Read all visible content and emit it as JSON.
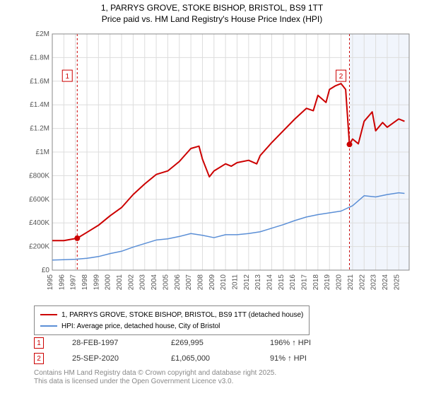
{
  "title": {
    "line1": "1, PARRYS GROVE, STOKE BISHOP, BRISTOL, BS9 1TT",
    "line2": "Price paid vs. HM Land Registry's House Price Index (HPI)",
    "fontsize": 12
  },
  "chart": {
    "type": "line",
    "background_color": "#ffffff",
    "grid_color": "#dddddd",
    "border_color": "#888888",
    "highlight_band": {
      "x_start": 2020.73,
      "x_end": 2025.9,
      "fill": "#f1f5fc"
    },
    "y_axis": {
      "min": 0,
      "max": 2000000,
      "ticks": [
        0,
        200000,
        400000,
        600000,
        800000,
        1000000,
        1200000,
        1400000,
        1600000,
        1800000,
        2000000
      ],
      "tick_labels": [
        "£0",
        "£200K",
        "£400K",
        "£600K",
        "£800K",
        "£1M",
        "£1.2M",
        "£1.4M",
        "£1.6M",
        "£1.8M",
        "£2M"
      ],
      "label_fontsize": 10,
      "label_color": "#555555"
    },
    "x_axis": {
      "min": 1995,
      "max": 2025.9,
      "ticks": [
        1995,
        1996,
        1997,
        1998,
        1999,
        2000,
        2001,
        2002,
        2003,
        2004,
        2005,
        2006,
        2007,
        2008,
        2009,
        2010,
        2011,
        2012,
        2013,
        2014,
        2015,
        2016,
        2017,
        2018,
        2019,
        2020,
        2021,
        2022,
        2023,
        2024,
        2025
      ],
      "label_fontsize": 10,
      "label_color": "#555555",
      "rotate": -90
    },
    "series": [
      {
        "name": "price_paid",
        "label": "1, PARRYS GROVE, STOKE BISHOP, BRISTOL, BS9 1TT (detached house)",
        "color": "#cc0000",
        "width": 2,
        "data": [
          [
            1995,
            250000
          ],
          [
            1996,
            250000
          ],
          [
            1997.16,
            269995
          ],
          [
            1998,
            320000
          ],
          [
            1999,
            380000
          ],
          [
            2000,
            460000
          ],
          [
            2001,
            530000
          ],
          [
            2002,
            640000
          ],
          [
            2003,
            730000
          ],
          [
            2004,
            810000
          ],
          [
            2005,
            840000
          ],
          [
            2006,
            920000
          ],
          [
            2007,
            1030000
          ],
          [
            2007.7,
            1050000
          ],
          [
            2008,
            940000
          ],
          [
            2008.6,
            790000
          ],
          [
            2009,
            840000
          ],
          [
            2010,
            900000
          ],
          [
            2010.5,
            880000
          ],
          [
            2011,
            910000
          ],
          [
            2012,
            930000
          ],
          [
            2012.7,
            900000
          ],
          [
            2013,
            970000
          ],
          [
            2014,
            1080000
          ],
          [
            2015,
            1180000
          ],
          [
            2016,
            1280000
          ],
          [
            2017,
            1370000
          ],
          [
            2017.6,
            1350000
          ],
          [
            2018,
            1480000
          ],
          [
            2018.7,
            1420000
          ],
          [
            2019,
            1530000
          ],
          [
            2019.5,
            1560000
          ],
          [
            2020,
            1580000
          ],
          [
            2020.4,
            1530000
          ],
          [
            2020.73,
            1065000
          ],
          [
            2021,
            1110000
          ],
          [
            2021.5,
            1070000
          ],
          [
            2022,
            1260000
          ],
          [
            2022.7,
            1340000
          ],
          [
            2023,
            1180000
          ],
          [
            2023.6,
            1250000
          ],
          [
            2024,
            1210000
          ],
          [
            2025,
            1280000
          ],
          [
            2025.5,
            1260000
          ]
        ]
      },
      {
        "name": "hpi",
        "label": "HPI: Average price, detached house, City of Bristol",
        "color": "#5b8fd6",
        "width": 1.5,
        "data": [
          [
            1995,
            85000
          ],
          [
            1996,
            88000
          ],
          [
            1997,
            92000
          ],
          [
            1998,
            100000
          ],
          [
            1999,
            115000
          ],
          [
            2000,
            140000
          ],
          [
            2001,
            160000
          ],
          [
            2002,
            195000
          ],
          [
            2003,
            225000
          ],
          [
            2004,
            255000
          ],
          [
            2005,
            265000
          ],
          [
            2006,
            285000
          ],
          [
            2007,
            310000
          ],
          [
            2008,
            295000
          ],
          [
            2009,
            275000
          ],
          [
            2010,
            300000
          ],
          [
            2011,
            300000
          ],
          [
            2012,
            310000
          ],
          [
            2013,
            325000
          ],
          [
            2014,
            355000
          ],
          [
            2015,
            385000
          ],
          [
            2016,
            420000
          ],
          [
            2017,
            450000
          ],
          [
            2018,
            470000
          ],
          [
            2019,
            485000
          ],
          [
            2020,
            500000
          ],
          [
            2021,
            545000
          ],
          [
            2022,
            630000
          ],
          [
            2023,
            620000
          ],
          [
            2024,
            640000
          ],
          [
            2025,
            655000
          ],
          [
            2025.5,
            650000
          ]
        ]
      }
    ],
    "sale_markers": [
      {
        "n": "1",
        "x": 1997.16,
        "y": 269995,
        "label_x": 1996.3,
        "label_y": 1640000,
        "dot_color": "#cc0000",
        "box_color": "#cc0000",
        "line_color": "#cc0000"
      },
      {
        "n": "2",
        "x": 2020.73,
        "y": 1065000,
        "label_x": 2020.0,
        "label_y": 1640000,
        "dot_color": "#cc0000",
        "box_color": "#cc0000",
        "line_color": "#cc0000"
      }
    ]
  },
  "legend": {
    "items": [
      {
        "color": "#cc0000",
        "label": "1, PARRYS GROVE, STOKE BISHOP, BRISTOL, BS9 1TT (detached house)"
      },
      {
        "color": "#5b8fd6",
        "label": "HPI: Average price, detached house, City of Bristol"
      }
    ]
  },
  "sales_table": {
    "rows": [
      {
        "n": "1",
        "date": "28-FEB-1997",
        "price": "£269,995",
        "delta": "196% ↑ HPI"
      },
      {
        "n": "2",
        "date": "25-SEP-2020",
        "price": "£1,065,000",
        "delta": "91% ↑ HPI"
      }
    ]
  },
  "attribution": {
    "line1": "Contains HM Land Registry data © Crown copyright and database right 2025.",
    "line2": "This data is licensed under the Open Government Licence v3.0."
  }
}
